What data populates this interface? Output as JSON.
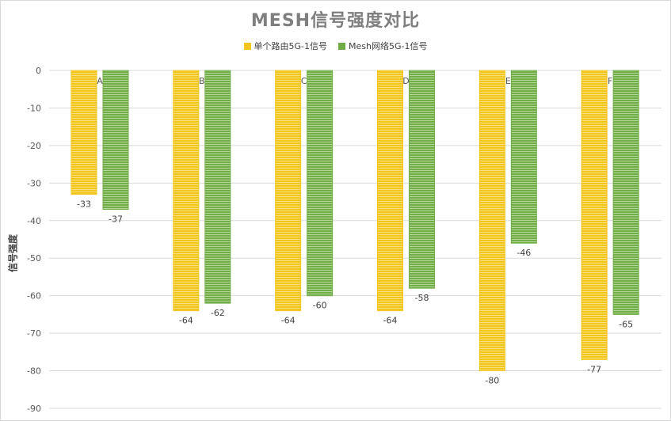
{
  "chart_data": {
    "type": "bar",
    "title": "MESH信号强度对比",
    "ylabel": "信号强度",
    "xlabel": "",
    "categories": [
      "A",
      "B",
      "C",
      "D",
      "E",
      "F"
    ],
    "series": [
      {
        "name": "单个路由5G-1信号",
        "values": [
          -33,
          -64,
          -64,
          -64,
          -80,
          -77
        ],
        "color": "#f2c61f",
        "stripe": "#f9e07a"
      },
      {
        "name": "Mesh网络5G-1信号",
        "values": [
          -37,
          -62,
          -60,
          -58,
          -46,
          -65
        ],
        "color": "#70ad47",
        "stripe": "#b5d89a"
      }
    ],
    "ylim": [
      -90,
      0
    ],
    "yticks": [
      0,
      -10,
      -20,
      -30,
      -40,
      -50,
      -60,
      -70,
      -80,
      -90
    ],
    "grid": true,
    "legend_position": "top"
  }
}
